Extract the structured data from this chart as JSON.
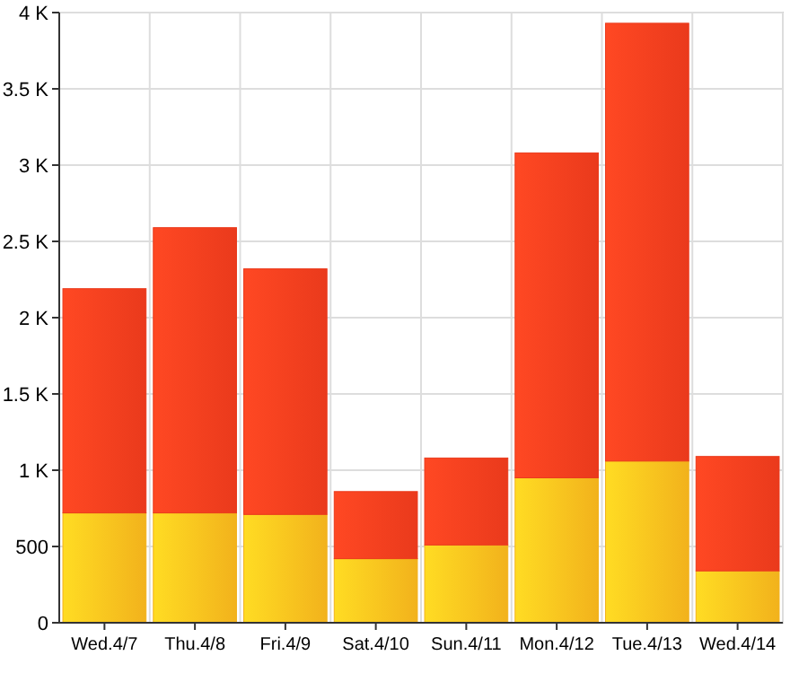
{
  "chart_data": {
    "type": "bar",
    "stacked": true,
    "categories": [
      "Wed.4/7",
      "Thu.4/8",
      "Fri.4/9",
      "Sat.4/10",
      "Sun.4/11",
      "Mon.4/12",
      "Tue.4/13",
      "Wed.4/14"
    ],
    "series": [
      {
        "color": "#f2b21c",
        "values": [
          720,
          720,
          710,
          420,
          510,
          950,
          1060,
          340
        ]
      },
      {
        "color": "#ea3a1c",
        "values": [
          1470,
          1870,
          1610,
          440,
          570,
          2130,
          2870,
          750
        ]
      }
    ],
    "ylim": [
      0,
      4000
    ],
    "yticks": [
      0,
      500,
      {
        "value": 1000,
        "label": "1 K"
      },
      {
        "value": 1500,
        "label": "1.5 K"
      },
      {
        "value": 2000,
        "label": "2 K"
      },
      {
        "value": 2500,
        "label": "2.5 K"
      },
      {
        "value": 3000,
        "label": "3 K"
      },
      {
        "value": 3500,
        "label": "3.5 K"
      },
      {
        "value": 4000,
        "label": "4 K"
      }
    ],
    "grid": true
  }
}
